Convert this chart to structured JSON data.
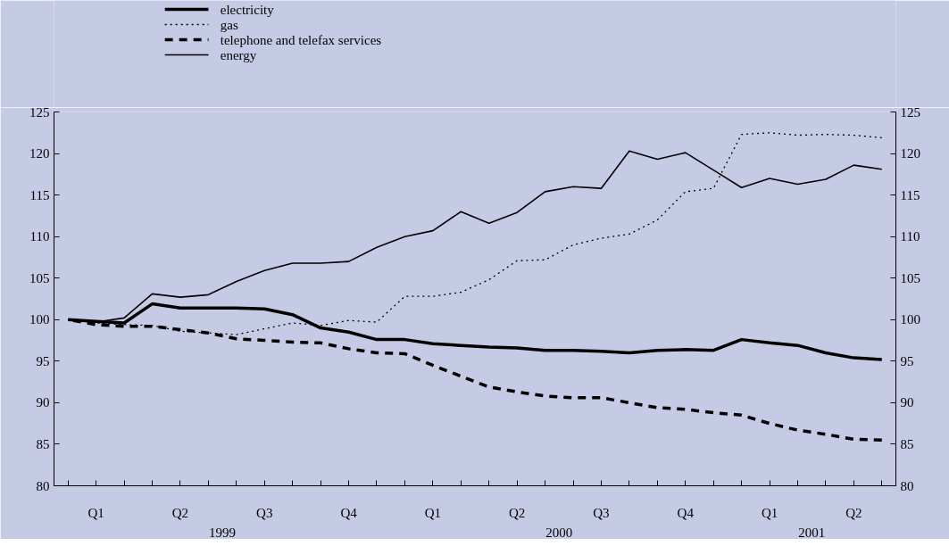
{
  "chart_data": {
    "type": "line",
    "categories": [
      null,
      "Q1",
      null,
      null,
      "Q2",
      null,
      null,
      "Q3",
      null,
      null,
      "Q4",
      null,
      null,
      "Q1",
      null,
      null,
      "Q2",
      null,
      null,
      "Q3",
      null,
      null,
      "Q4",
      null,
      null,
      "Q1",
      null,
      null,
      "Q2",
      null
    ],
    "series": [
      {
        "name": "electricity",
        "color": "#000000",
        "line_style": "solid",
        "values": [
          100,
          99.8,
          99.6,
          101.9,
          101.4,
          101.4,
          101.4,
          101.3,
          100.6,
          99.0,
          98.5,
          97.6,
          97.6,
          97.1,
          96.9,
          96.7,
          96.6,
          96.3,
          96.3,
          96.2,
          96.0,
          96.3,
          96.4,
          96.3,
          97.6,
          97.2,
          96.9,
          96.0,
          95.4,
          95.2
        ]
      },
      {
        "name": "gas",
        "color": "#000000",
        "line_style": "dotted",
        "values": [
          100,
          99.6,
          99.4,
          99.3,
          98.6,
          98.4,
          98.2,
          98.9,
          99.6,
          99.3,
          99.9,
          99.7,
          102.8,
          102.8,
          103.3,
          104.8,
          107.1,
          107.2,
          109.0,
          109.8,
          110.3,
          112.0,
          115.4,
          115.8,
          122.3,
          122.5,
          122.2,
          122.3,
          122.2,
          121.9
        ]
      },
      {
        "name": "telephone and telefax services",
        "color": "#000000",
        "line_style": "dashed",
        "values": [
          100,
          99.4,
          99.2,
          99.2,
          98.8,
          98.4,
          97.7,
          97.5,
          97.3,
          97.2,
          96.5,
          96.0,
          95.9,
          94.5,
          93.2,
          91.9,
          91.3,
          90.8,
          90.6,
          90.6,
          90.0,
          89.4,
          89.2,
          88.8,
          88.5,
          87.5,
          86.7,
          86.2,
          85.6,
          85.5
        ]
      },
      {
        "name": "energy",
        "color": "#000000",
        "line_style": "solid",
        "values": [
          100,
          99.7,
          100.2,
          103.1,
          102.7,
          103.0,
          104.6,
          105.9,
          106.8,
          106.8,
          107.0,
          108.7,
          110.0,
          110.7,
          113.0,
          111.6,
          112.9,
          115.4,
          116.0,
          115.8,
          120.3,
          119.3,
          120.1,
          118.0,
          115.9,
          117.0,
          116.3,
          116.9,
          118.6,
          118.1
        ]
      }
    ],
    "ylim": [
      80,
      125
    ],
    "yticks": [
      80,
      85,
      90,
      95,
      100,
      105,
      110,
      115,
      120,
      125
    ],
    "y2lim": [
      80,
      125
    ],
    "y2ticks": [
      80,
      85,
      90,
      95,
      100,
      105,
      110,
      115,
      120,
      125
    ],
    "annotations": [
      "1999",
      "2000",
      "2001"
    ],
    "grid": false,
    "legend": "top left"
  }
}
